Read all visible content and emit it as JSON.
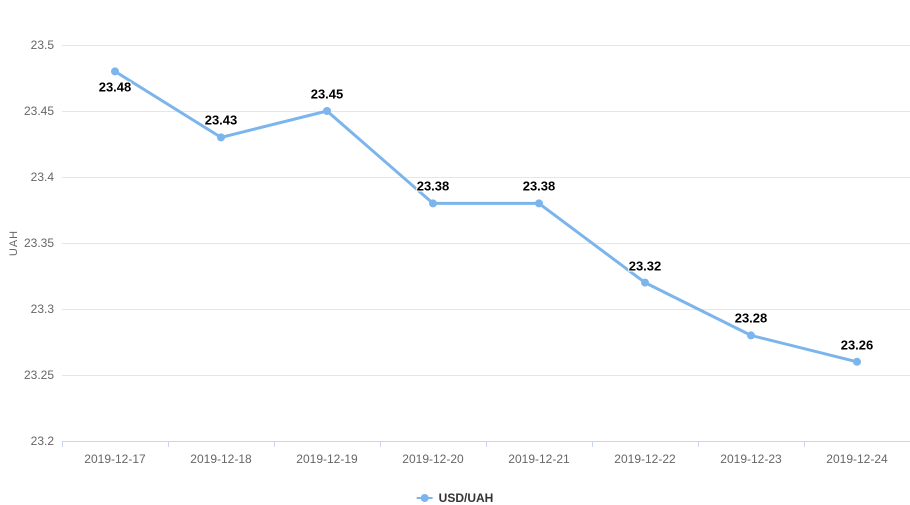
{
  "chart_data": {
    "type": "line",
    "title": "",
    "categories": [
      "2019-12-17",
      "2019-12-18",
      "2019-12-19",
      "2019-12-20",
      "2019-12-21",
      "2019-12-22",
      "2019-12-23",
      "2019-12-24"
    ],
    "series": [
      {
        "name": "USD/UAH",
        "values": [
          23.48,
          23.43,
          23.45,
          23.38,
          23.38,
          23.32,
          23.28,
          23.26
        ]
      }
    ],
    "data_labels": [
      "23.48",
      "23.43",
      "23.45",
      "23.38",
      "23.38",
      "23.32",
      "23.28",
      "23.26"
    ],
    "xlabel": "",
    "ylabel": "UAH",
    "ylim": [
      23.2,
      23.5
    ],
    "yticks": [
      "23.2",
      "23.25",
      "23.3",
      "23.35",
      "23.4",
      "23.45",
      "23.5"
    ],
    "grid": true,
    "legend_position": "bottom",
    "colors": {
      "line": "#7cb5ec",
      "marker": "#7cb5ec",
      "grid": "#e6e6e6",
      "axis_line": "#ccd6eb",
      "tick_label": "#666666",
      "data_label": "#000000",
      "legend_text": "#333333"
    }
  }
}
